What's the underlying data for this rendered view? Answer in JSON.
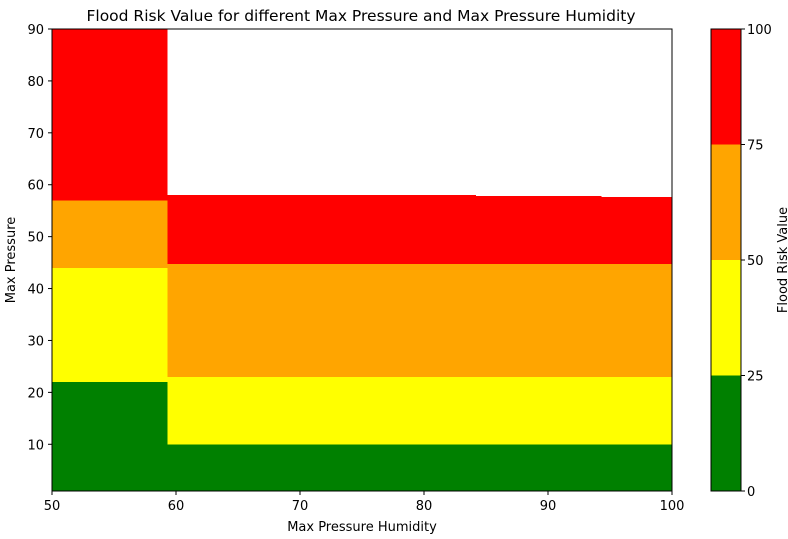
{
  "chart_data": {
    "type": "heatmap",
    "title": "Flood Risk Value for different Max Pressure and Max Pressure Humidity",
    "xlabel": "Max Pressure Humidity",
    "ylabel": "Max Pressure",
    "xlim": [
      50,
      100
    ],
    "ylim": [
      1,
      90
    ],
    "x_ticks": [
      "50",
      "60",
      "70",
      "80",
      "90",
      "100"
    ],
    "y_ticks": [
      "10",
      "20",
      "30",
      "40",
      "50",
      "60",
      "70",
      "80",
      "90"
    ],
    "colors": {
      "low": "#008000",
      "moderate": "#ffff00",
      "high": "#ffa500",
      "severe": "#ff0000",
      "no_data": "#ffffff"
    },
    "regions": [
      {
        "x": [
          50,
          59.3
        ],
        "y": [
          1,
          22
        ],
        "risk": "low"
      },
      {
        "x": [
          50,
          59.3
        ],
        "y": [
          22,
          44
        ],
        "risk": "moderate"
      },
      {
        "x": [
          50,
          59.3
        ],
        "y": [
          44,
          57
        ],
        "risk": "high"
      },
      {
        "x": [
          50,
          59.3
        ],
        "y": [
          57,
          90
        ],
        "risk": "severe"
      },
      {
        "x": [
          59.3,
          100
        ],
        "y": [
          1,
          10
        ],
        "risk": "low"
      },
      {
        "x": [
          59.3,
          100
        ],
        "y": [
          10,
          23
        ],
        "risk": "moderate"
      },
      {
        "x": [
          59.3,
          100
        ],
        "y": [
          23,
          44.7
        ],
        "risk": "high"
      },
      {
        "x": [
          59.3,
          84.2
        ],
        "y": [
          44.7,
          58
        ],
        "risk": "severe"
      },
      {
        "x": [
          84.2,
          94.3
        ],
        "y": [
          44.7,
          57.8
        ],
        "risk": "severe"
      },
      {
        "x": [
          94.3,
          100
        ],
        "y": [
          44.7,
          57.6
        ],
        "risk": "severe"
      }
    ],
    "colorbar": {
      "label": "Flood Risk Value",
      "range": [
        0,
        100
      ],
      "ticks": [
        "0",
        "25",
        "50",
        "75",
        "100"
      ],
      "bands": [
        {
          "from": 0,
          "to": 25,
          "color": "#008000"
        },
        {
          "from": 25,
          "to": 50,
          "color": "#ffff00"
        },
        {
          "from": 50,
          "to": 75,
          "color": "#ffa500"
        },
        {
          "from": 75,
          "to": 100,
          "color": "#ff0000"
        }
      ]
    }
  }
}
